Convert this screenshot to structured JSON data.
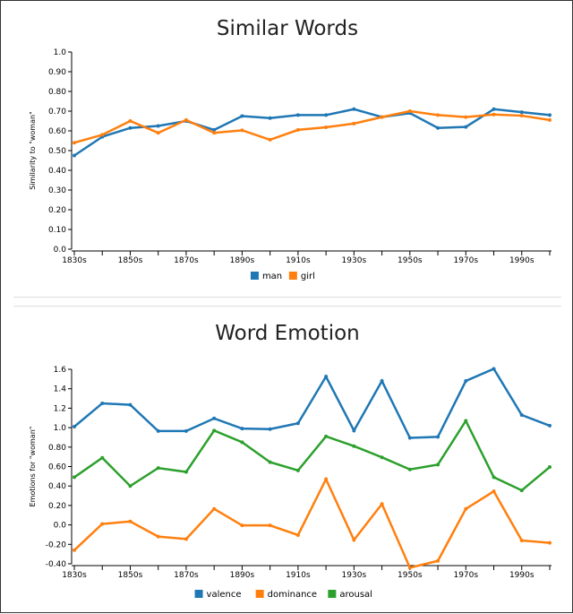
{
  "chart_data": [
    {
      "type": "line",
      "title": "Similar Words",
      "ylabel": "Similarity to \"woman\"",
      "xlabel": "",
      "x": [
        "1830s",
        "1840s",
        "1850s",
        "1860s",
        "1870s",
        "1880s",
        "1890s",
        "1900s",
        "1910s",
        "1920s",
        "1930s",
        "1940s",
        "1950s",
        "1960s",
        "1970s",
        "1980s",
        "1990s",
        "2000s"
      ],
      "xticklabels": [
        "1830s",
        "1850s",
        "1870s",
        "1890s",
        "1910s",
        "1930s",
        "1950s",
        "1970s",
        "1990s"
      ],
      "ylim": [
        0,
        1
      ],
      "yticks": [
        0,
        0.1,
        0.2,
        0.3,
        0.4,
        0.5,
        0.6,
        0.7,
        0.8,
        0.9,
        1.0
      ],
      "yticklabels": [
        "0.0",
        "0.10",
        "0.20",
        "0.30",
        "0.40",
        "0.50",
        "0.60",
        "0.70",
        "0.80",
        "0.90",
        "1.0"
      ],
      "legend": "bottom",
      "series": [
        {
          "name": "man",
          "color": "#1f77b4",
          "values": [
            0.475,
            0.57,
            0.615,
            0.625,
            0.65,
            0.605,
            0.675,
            0.665,
            0.68,
            0.68,
            0.71,
            0.67,
            0.69,
            0.615,
            0.62,
            0.71,
            0.695,
            0.68
          ]
        },
        {
          "name": "girl",
          "color": "#ff7f0e",
          "values": [
            0.54,
            0.58,
            0.65,
            0.59,
            0.655,
            0.59,
            0.603,
            0.555,
            0.605,
            0.618,
            0.637,
            0.67,
            0.7,
            0.68,
            0.67,
            0.683,
            0.677,
            0.655
          ]
        }
      ]
    },
    {
      "type": "line",
      "title": "Word Emotion",
      "ylabel": "Emotions for \"woman\"",
      "xlabel": "",
      "x": [
        "1830s",
        "1840s",
        "1850s",
        "1860s",
        "1870s",
        "1880s",
        "1890s",
        "1900s",
        "1910s",
        "1920s",
        "1930s",
        "1940s",
        "1950s",
        "1960s",
        "1970s",
        "1980s",
        "1990s",
        "2000s"
      ],
      "xticklabels": [
        "1830s",
        "1850s",
        "1870s",
        "1890s",
        "1910s",
        "1930s",
        "1950s",
        "1970s",
        "1990s"
      ],
      "ylim": [
        -0.4,
        1.6
      ],
      "yticks": [
        -0.4,
        -0.2,
        0,
        0.2,
        0.4,
        0.6,
        0.8,
        1.0,
        1.2,
        1.4,
        1.6
      ],
      "yticklabels": [
        "-0.40",
        "-0.20",
        "0.0",
        "0.20",
        "0.40",
        "0.60",
        "0.80",
        "1.0",
        "1.2",
        "1.4",
        "1.6"
      ],
      "legend": "bottom",
      "series": [
        {
          "name": "valence",
          "color": "#1f77b4",
          "values": [
            1.01,
            1.25,
            1.235,
            0.965,
            0.965,
            1.095,
            0.99,
            0.985,
            1.045,
            1.525,
            0.97,
            1.48,
            0.895,
            0.905,
            1.48,
            1.605,
            1.13,
            1.02
          ]
        },
        {
          "name": "dominance",
          "color": "#ff7f0e",
          "values": [
            -0.26,
            0.01,
            0.035,
            -0.12,
            -0.145,
            0.165,
            -0.005,
            -0.005,
            -0.105,
            0.47,
            -0.155,
            0.215,
            -0.44,
            -0.37,
            0.165,
            0.345,
            -0.16,
            -0.185
          ]
        },
        {
          "name": "arousal",
          "color": "#2ca02c",
          "values": [
            0.49,
            0.69,
            0.4,
            0.585,
            0.545,
            0.97,
            0.85,
            0.645,
            0.56,
            0.91,
            0.81,
            0.695,
            0.57,
            0.62,
            1.07,
            0.49,
            0.355,
            0.595
          ]
        }
      ]
    }
  ]
}
